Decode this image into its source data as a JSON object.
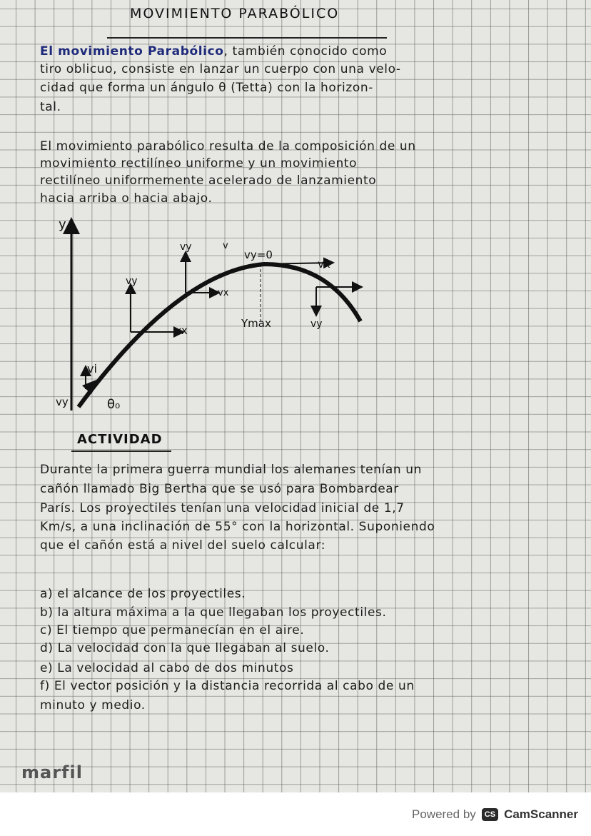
{
  "title": "MOVIMIENTO PARABÓLICO",
  "paragraph1": [
    "El movimiento Parabólico, también conocido como",
    "tiro oblicuo, consiste en lanzar un cuerpo con una velo-",
    "cidad que forma un ángulo θ (Tetta) con la horizon-",
    "tal."
  ],
  "paragraph1_highlight": "El movimiento Parabólico",
  "paragraph2": [
    "El movimiento parabólico resulta de la composición de un",
    "movimiento rectilíneo uniforme y un movimiento",
    "rectilíneo uniformemente acelerado de lanzamiento",
    "hacia arriba o hacia abajo."
  ],
  "diagram": {
    "y_axis": "y",
    "vy": "vy",
    "vx": "vx",
    "v": "v",
    "vy_zero": "vy=0",
    "ymax": "Ymax",
    "vi": "vi",
    "theta": "θ₀"
  },
  "activity_title": "ACTIVIDAD",
  "paragraph3": [
    "Durante la primera guerra mundial los alemanes tenían un",
    "cañón llamado Big Bertha que se usó para Bombardear",
    "París. Los proyectiles tenían una velocidad inicial de 1,7",
    "Km/s, a una inclinación de 55° con la horizontal. Suponiendo",
    "que el cañón está a nivel del suelo calcular:"
  ],
  "questions": [
    "a) el alcance de los proyectiles.",
    "b) la altura máxima a la que llegaban los proyectiles.",
    "c) El tiempo que permanecían en el aire.",
    "d) La velocidad con la que llegaban al suelo.",
    "e) La velocidad al cabo de dos minutos",
    "f) El vector posición y la distancia recorrida al cabo de un",
    "minuto y medio."
  ],
  "brand": "marfil",
  "footer": {
    "powered_by": "Powered by",
    "logo": "CS",
    "name": "CamScanner"
  }
}
